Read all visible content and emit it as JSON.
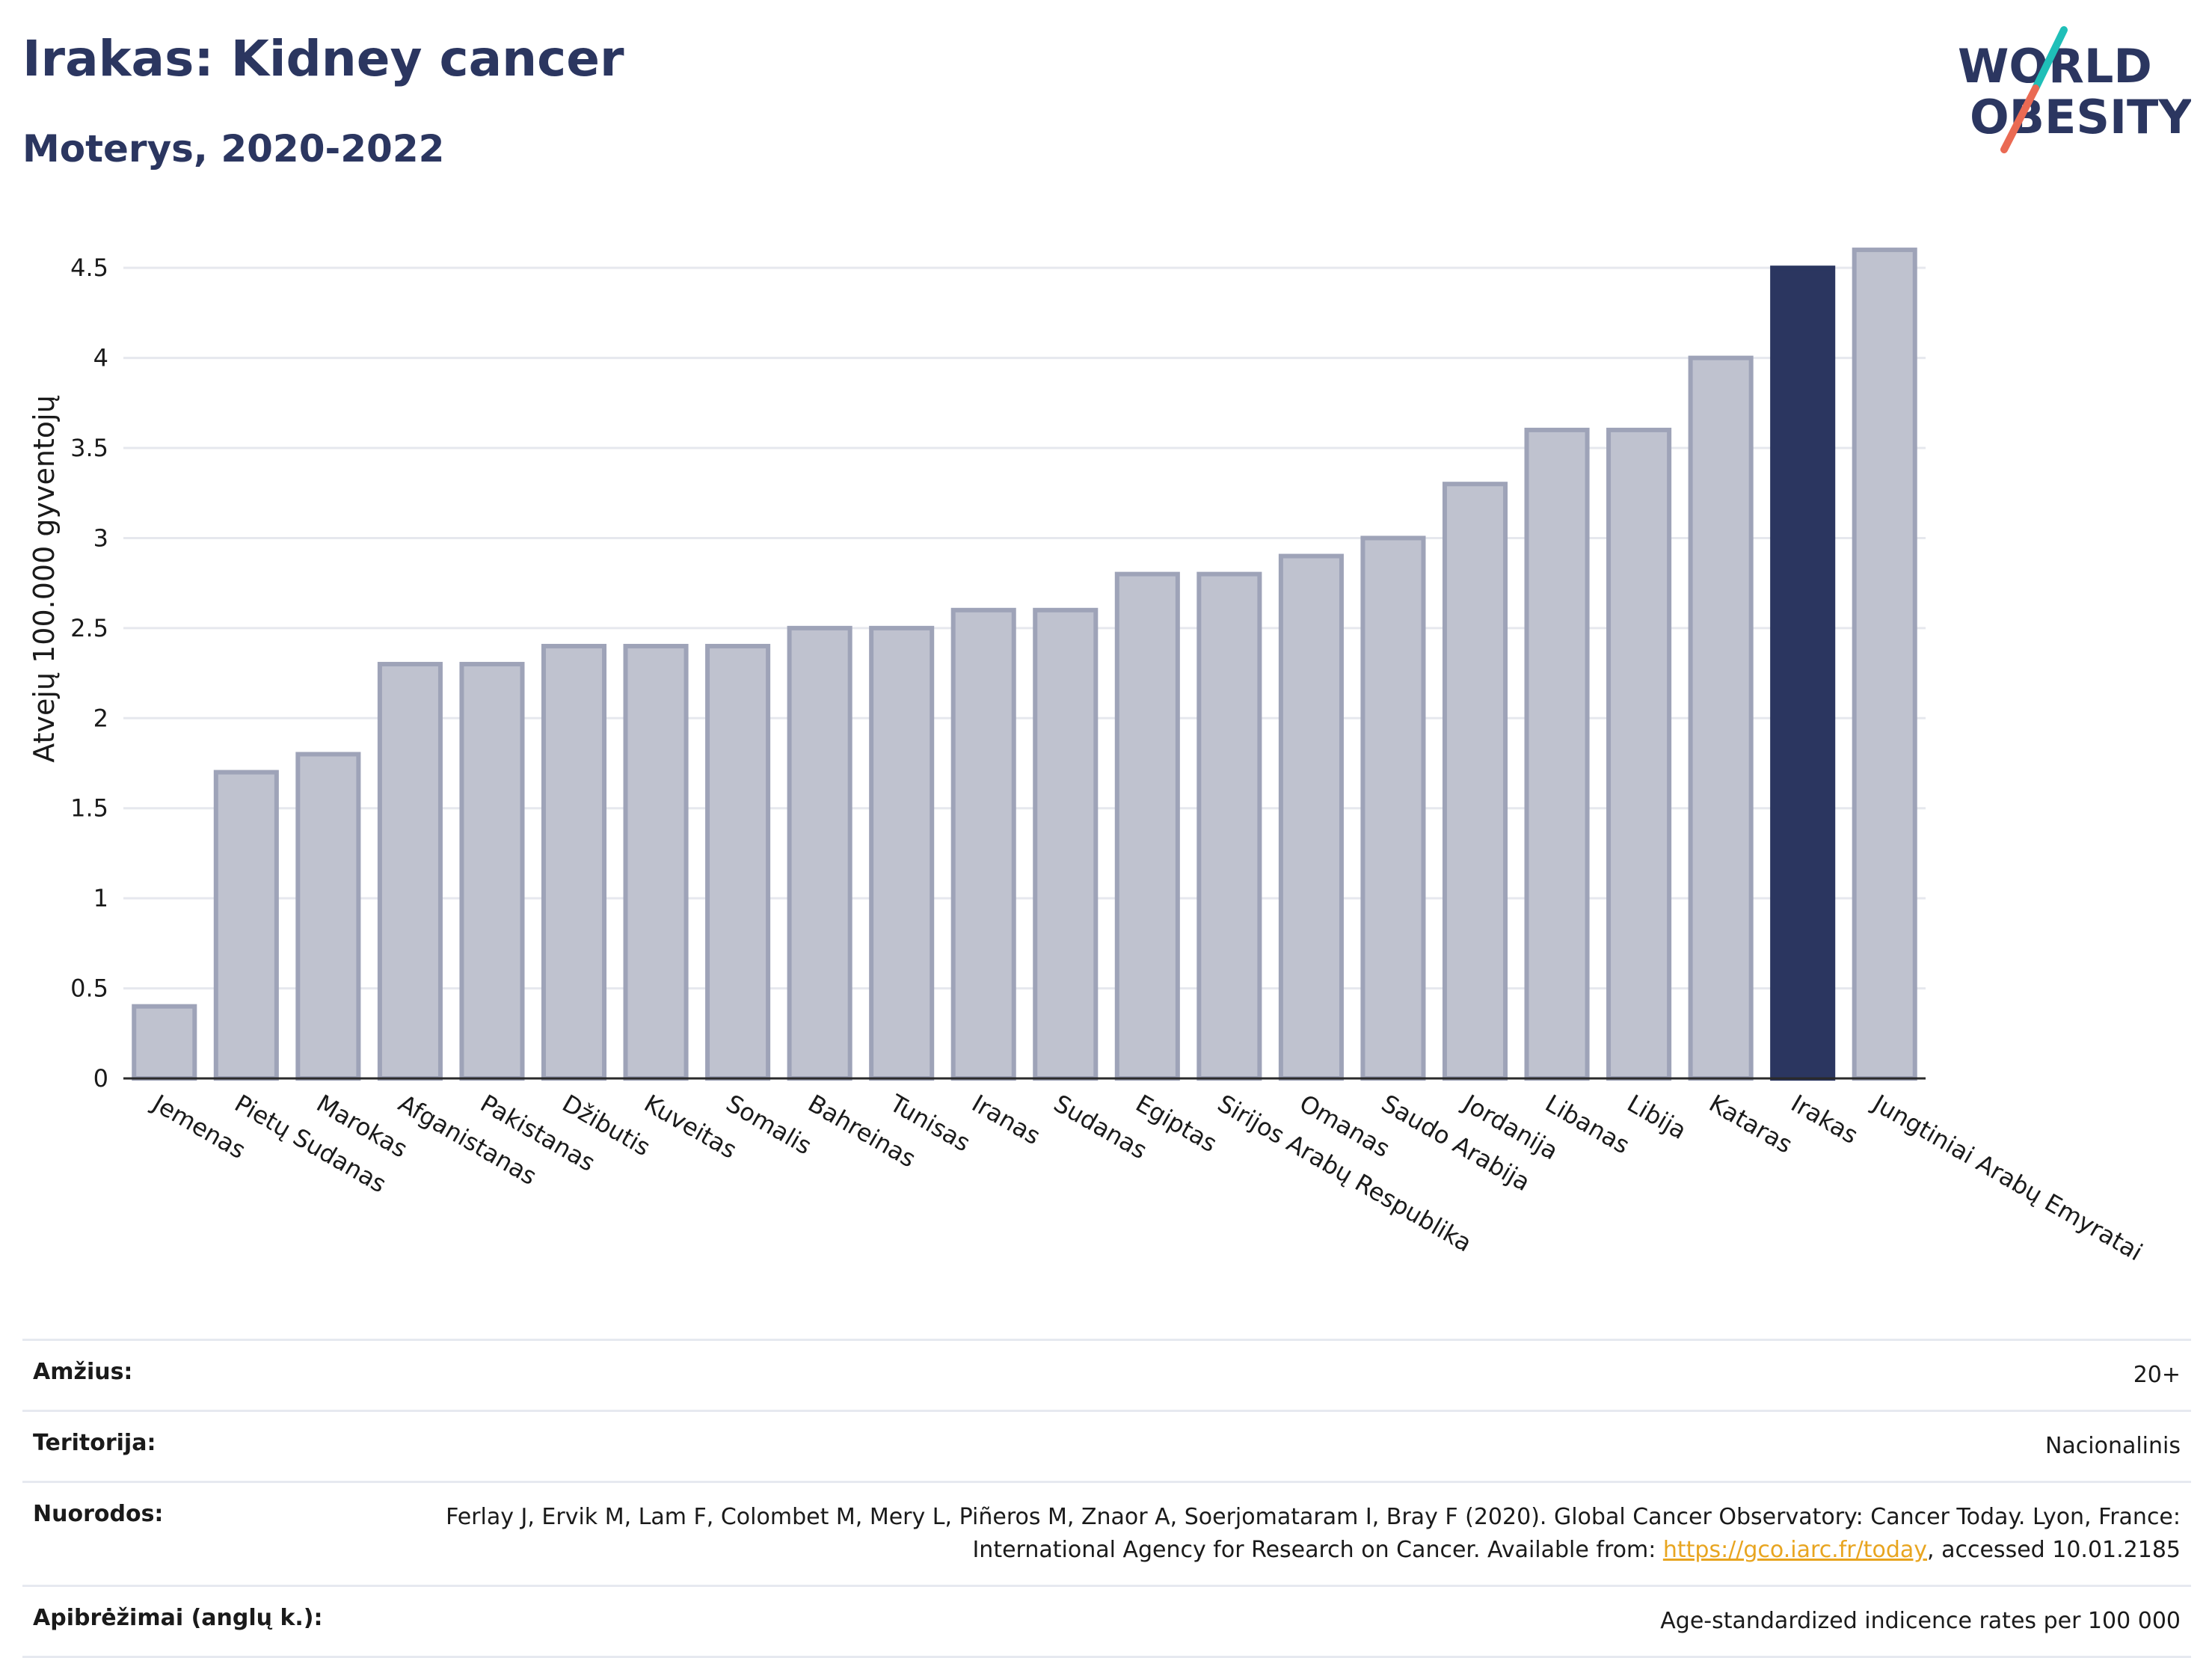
{
  "header": {
    "title": "Irakas: Kidney cancer",
    "subtitle": "Moterys, 2020-2022"
  },
  "logo": {
    "line1": "WORLD",
    "line2": "OBESITY",
    "slash_colors": [
      "#1fbfb8",
      "#ea6a53"
    ],
    "text_color": "#2b3660"
  },
  "chart_data": {
    "type": "bar",
    "ylabel": "Atvejų 100.000 gyventojų",
    "ylim": [
      0,
      4.7
    ],
    "yticks": [
      0,
      0.5,
      1,
      1.5,
      2,
      2.5,
      3,
      3.5,
      4,
      4.5
    ],
    "ytick_labels": [
      "0",
      "0.5",
      "1",
      "1.5",
      "2",
      "2.5",
      "3",
      "3.5",
      "4",
      "4.5"
    ],
    "grid": true,
    "categories": [
      "Jemenas",
      "Pietų Sudanas",
      "Marokas",
      "Afganistanas",
      "Pakistanas",
      "Džibutis",
      "Kuveitas",
      "Somalis",
      "Bahreinas",
      "Tunisas",
      "Iranas",
      "Sudanas",
      "Egiptas",
      "Sirijos Arabų Respublika",
      "Omanas",
      "Saudo Arabija",
      "Jordanija",
      "Libanas",
      "Libija",
      "Kataras",
      "Irakas",
      "Jungtiniai Arabų Emyratai"
    ],
    "values": [
      0.4,
      1.7,
      1.8,
      2.3,
      2.3,
      2.4,
      2.4,
      2.4,
      2.5,
      2.5,
      2.6,
      2.6,
      2.8,
      2.8,
      2.9,
      3.0,
      3.3,
      3.6,
      3.6,
      4.0,
      4.5,
      4.6
    ],
    "highlight": "Irakas",
    "colors": {
      "bar": "#bfc2cf",
      "bar_edge": "#9ea3b8",
      "highlight": "#2b3660"
    }
  },
  "meta": {
    "age_label": "Amžius:",
    "age_value": "20+",
    "territory_label": "Teritorija:",
    "territory_value": "Nacionalinis",
    "refs_label": "Nuorodos:",
    "refs_text_1": "Ferlay J, Ervik M, Lam F, Colombet M, Mery L, Piñeros M, Znaor A, Soerjomataram I, Bray F (2020). Global Cancer Observatory: Cancer Today. Lyon, France: International Agency for Research on Cancer. Available from: ",
    "refs_link": "https://gco.iarc.fr/today",
    "refs_text_2": ", accessed 10.01.2185",
    "defs_label": "Apibrėžimai (anglų k.):",
    "defs_value": "Age-standardized indicence rates per 100 000"
  }
}
